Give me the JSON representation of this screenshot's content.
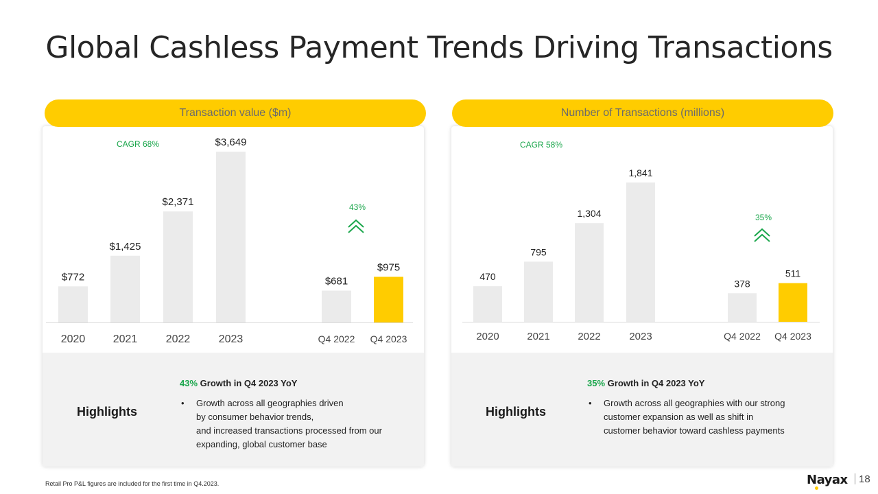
{
  "slide": {
    "title": "Global Cashless Payment Trends Driving Transactions",
    "footnote": "Retail Pro P&L figures are included for the first time in Q4.2023.",
    "logo": "Nayax",
    "page_number": "18"
  },
  "colors": {
    "accent": "#FFCC00",
    "bar": "#EBEBEB",
    "green": "#1AA64B"
  },
  "left_panel": {
    "header": "Transaction value ($m)",
    "highlights_label": "Highlights",
    "highlight_pct": "43%",
    "highlight_title": " Growth in Q4 2023 YoY",
    "bullet": "Growth  across all geographies driven\nby consumer behavior trends,\nand increased transactions processed from our\nexpanding, global customer base"
  },
  "right_panel": {
    "header": "Number of Transactions (millions)",
    "highlights_label": "Highlights",
    "highlight_pct": "35%",
    "highlight_title": " Growth in Q4 2023 YoY",
    "bullet": "Growth  across all geographies with our strong\ncustomer expansion as well as shift in\ncustomer behavior toward cashless payments"
  },
  "chart_data": [
    {
      "type": "bar",
      "title": "Transaction value ($m)",
      "categories": [
        "2020",
        "2021",
        "2022",
        "2023",
        "Q4 2022",
        "Q4 2023"
      ],
      "values": [
        772,
        1425,
        2371,
        3649,
        681,
        975
      ],
      "value_labels": [
        "$772",
        "$1,425",
        "$2,371",
        "$3,649",
        "$681",
        "$975"
      ],
      "highlight_index": 5,
      "annotations": {
        "cagr": "CAGR 68%",
        "growth": "43%"
      },
      "ylim": [
        0,
        3649
      ],
      "grid": false
    },
    {
      "type": "bar",
      "title": "Number of Transactions (millions)",
      "categories": [
        "2020",
        "2021",
        "2022",
        "2023",
        "Q4 2022",
        "Q4 2023"
      ],
      "values": [
        470,
        795,
        1304,
        1841,
        378,
        511
      ],
      "value_labels": [
        "470",
        "795",
        "1,304",
        "1,841",
        "378",
        "511"
      ],
      "highlight_index": 5,
      "annotations": {
        "cagr": "CAGR 58%",
        "growth": "35%"
      },
      "ylim": [
        0,
        1841
      ],
      "grid": false
    }
  ]
}
